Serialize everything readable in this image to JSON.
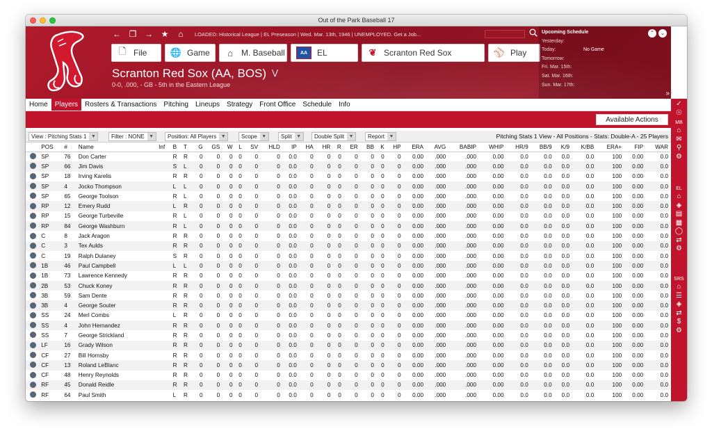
{
  "window": {
    "title": "Out of the Park Baseball 17"
  },
  "nav": {
    "loaded_text": "LOADED: Historical League  |  EL Preseason  |  Wed. Mar. 13th, 1946  |  UNEMPLOYED. Get a Job...",
    "buttons": [
      {
        "label": "File",
        "icon": "file-icon"
      },
      {
        "label": "Game",
        "icon": "globe-icon"
      },
      {
        "label": "M. Baseball",
        "icon": "home-icon"
      },
      {
        "label": "EL",
        "icon": "league-logo-icon"
      },
      {
        "label": "Scranton Red Sox",
        "icon": "team-logo-icon"
      },
      {
        "label": "Play",
        "icon": "baseball-icon"
      }
    ]
  },
  "team": {
    "title": "Scranton Red Sox (AA, BOS)",
    "subtitle": "0-0, .000, - GB - 5th in the Eastern League"
  },
  "schedule": {
    "header": "Upcoming Schedule",
    "rows": [
      "Yesterday:",
      "Today:",
      "Tomorrow:",
      "Fri. Mar. 15th:",
      "Sat. Mar. 16th:",
      "Sun. Mar. 17th:"
    ],
    "today_value": "No Game"
  },
  "menu": {
    "items": [
      "Home",
      "Players",
      "Rosters & Transactions",
      "Pitching",
      "Lineups",
      "Strategy",
      "Front Office",
      "Schedule",
      "Info"
    ],
    "active_index": 1
  },
  "actions": {
    "available_label": "Available Actions"
  },
  "filters": {
    "view": "View : Pitching Stats 1",
    "filter": "Filter : NONE",
    "position": "Position: All Players",
    "scope": "Scope",
    "split": "Split",
    "double_split": "Double Split",
    "report": "Report",
    "view_info": "Pitching Stats 1 View - All Positions - Stats: Double-A - 25 Players"
  },
  "table": {
    "columns": [
      "",
      "POS",
      "#",
      "Name",
      "Inf",
      "B",
      "T",
      "G",
      "GS",
      "W",
      "L",
      "SV",
      "HLD",
      "IP",
      "HA",
      "HR",
      "R",
      "ER",
      "BB",
      "K",
      "HP",
      "ERA",
      "AVG",
      "BABIP",
      "WHIP",
      "HR/9",
      "BB/9",
      "K/9",
      "K/BB",
      "ERA+",
      "FIP",
      "WAR"
    ],
    "zero_stats": [
      "0",
      "0",
      "0",
      "0",
      "0",
      "0",
      "0.0",
      "0",
      "0",
      "0",
      "0",
      "0",
      "0",
      "0",
      "0.00",
      ".000",
      ".000",
      "0.00",
      "0.0",
      "0.0",
      "0.0",
      "0.0",
      "100",
      "0.00",
      "0.0"
    ],
    "rows": [
      {
        "pos": "SP",
        "num": "76",
        "name": "Don Carter",
        "b": "R",
        "t": "R"
      },
      {
        "pos": "SP",
        "num": "66",
        "name": "Jim Davis",
        "b": "S",
        "t": "L"
      },
      {
        "pos": "SP",
        "num": "18",
        "name": "Irving Karelis",
        "b": "R",
        "t": "R"
      },
      {
        "pos": "SP",
        "num": "4",
        "name": "Jocko Thompson",
        "b": "L",
        "t": "L"
      },
      {
        "pos": "SP",
        "num": "65",
        "name": "George Toolson",
        "b": "R",
        "t": "L"
      },
      {
        "pos": "RP",
        "num": "12",
        "name": "Emery Rudd",
        "b": "L",
        "t": "R"
      },
      {
        "pos": "RP",
        "num": "15",
        "name": "George Turbeville",
        "b": "R",
        "t": "L"
      },
      {
        "pos": "RP",
        "num": "84",
        "name": "George Washburn",
        "b": "R",
        "t": "L"
      },
      {
        "pos": "C",
        "num": "8",
        "name": "Jack Aragon",
        "b": "R",
        "t": "R"
      },
      {
        "pos": "C",
        "num": "3",
        "name": "Tex Aulds",
        "b": "R",
        "t": "R"
      },
      {
        "pos": "C",
        "num": "19",
        "name": "Ralph Dulaney",
        "b": "S",
        "t": "R"
      },
      {
        "pos": "1B",
        "num": "46",
        "name": "Paul Campbell",
        "b": "L",
        "t": "L"
      },
      {
        "pos": "1B",
        "num": "73",
        "name": "Lawrence Kennedy",
        "b": "R",
        "t": "R"
      },
      {
        "pos": "2B",
        "num": "53",
        "name": "Chuck Koney",
        "b": "R",
        "t": "R"
      },
      {
        "pos": "3B",
        "num": "59",
        "name": "Sam Dente",
        "b": "R",
        "t": "R"
      },
      {
        "pos": "3B",
        "num": "4",
        "name": "George Souter",
        "b": "R",
        "t": "R"
      },
      {
        "pos": "SS",
        "num": "24",
        "name": "Merl Combs",
        "b": "L",
        "t": "R"
      },
      {
        "pos": "SS",
        "num": "4",
        "name": "John Hernandez",
        "b": "R",
        "t": "R"
      },
      {
        "pos": "SS",
        "num": "7",
        "name": "George Strickland",
        "b": "R",
        "t": "R"
      },
      {
        "pos": "LF",
        "num": "16",
        "name": "Grady Wilson",
        "b": "R",
        "t": "R"
      },
      {
        "pos": "CF",
        "num": "27",
        "name": "Bill Hornsby",
        "b": "R",
        "t": "R"
      },
      {
        "pos": "CF",
        "num": "13",
        "name": "Roland LeBlanc",
        "b": "R",
        "t": "R"
      },
      {
        "pos": "CF",
        "num": "48",
        "name": "Henry Reynolds",
        "b": "R",
        "t": "R"
      },
      {
        "pos": "RF",
        "num": "45",
        "name": "Donald Reidle",
        "b": "R",
        "t": "R"
      },
      {
        "pos": "RF",
        "num": "64",
        "name": "Paul Smith",
        "b": "L",
        "t": "R"
      }
    ]
  },
  "right_sidebar": {
    "sections": [
      "MB",
      "EL",
      "SRS"
    ]
  },
  "colors": {
    "accent": "#c0132c",
    "header": "#a1182a"
  }
}
